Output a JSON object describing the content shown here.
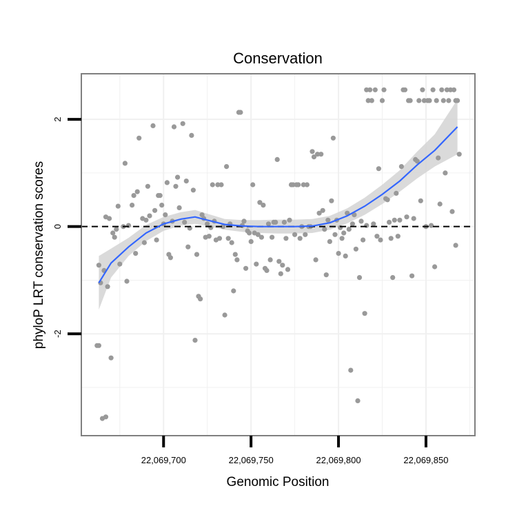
{
  "chart_data": {
    "type": "scatter",
    "title": "Conservation",
    "xlabel": "Genomic Position",
    "ylabel": "phyloP LRT conservation scores",
    "xlim": [
      22069653,
      22069878
    ],
    "ylim": [
      -3.9,
      2.85
    ],
    "x_ticks": [
      22069700,
      22069750,
      22069800,
      22069850
    ],
    "x_tick_labels": [
      "22,069,700",
      "22,069,750",
      "22,069,800",
      "22,069,850"
    ],
    "y_ticks": [
      -2,
      0,
      2
    ],
    "y_tick_labels": [
      "-2",
      "0",
      "2"
    ],
    "reference_line": {
      "y": 0,
      "style": "dashed"
    },
    "grid": true,
    "colors": {
      "points": "#999999",
      "smooth_line": "#3366ff",
      "ribbon": "#d3d3d3",
      "panel_border": "#7f7f7f",
      "grid": "#f0f0f0"
    },
    "points": [
      [
        22069662,
        -2.22
      ],
      [
        22069663,
        -2.22
      ],
      [
        22069663,
        -0.72
      ],
      [
        22069664,
        -1.05
      ],
      [
        22069665,
        -3.58
      ],
      [
        22069666,
        -0.82
      ],
      [
        22069667,
        0.18
      ],
      [
        22069667,
        -3.55
      ],
      [
        22069668,
        -1.12
      ],
      [
        22069669,
        0.15
      ],
      [
        22069670,
        -2.45
      ],
      [
        22069671,
        -0.12
      ],
      [
        22069672,
        -0.2
      ],
      [
        22069673,
        -0.05
      ],
      [
        22069674,
        0.38
      ],
      [
        22069675,
        -0.7
      ],
      [
        22069677,
        0.0
      ],
      [
        22069678,
        1.18
      ],
      [
        22069679,
        -1.02
      ],
      [
        22069680,
        0.02
      ],
      [
        22069682,
        0.4
      ],
      [
        22069683,
        0.58
      ],
      [
        22069684,
        -0.5
      ],
      [
        22069685,
        0.65
      ],
      [
        22069686,
        1.65
      ],
      [
        22069688,
        0.15
      ],
      [
        22069689,
        -0.3
      ],
      [
        22069690,
        0.12
      ],
      [
        22069691,
        0.75
      ],
      [
        22069692,
        0.2
      ],
      [
        22069694,
        1.88
      ],
      [
        22069695,
        0.3
      ],
      [
        22069696,
        -0.25
      ],
      [
        22069697,
        0.58
      ],
      [
        22069698,
        0.58
      ],
      [
        22069699,
        0.4
      ],
      [
        22069700,
        0.05
      ],
      [
        22069701,
        0.22
      ],
      [
        22069702,
        0.82
      ],
      [
        22069703,
        -0.52
      ],
      [
        22069704,
        -0.58
      ],
      [
        22069705,
        0.1
      ],
      [
        22069706,
        1.86
      ],
      [
        22069707,
        0.75
      ],
      [
        22069708,
        0.92
      ],
      [
        22069709,
        0.35
      ],
      [
        22069711,
        1.92
      ],
      [
        22069712,
        0.08
      ],
      [
        22069713,
        0.85
      ],
      [
        22069714,
        -0.38
      ],
      [
        22069715,
        -0.03
      ],
      [
        22069716,
        1.7
      ],
      [
        22069717,
        0.68
      ],
      [
        22069718,
        -2.12
      ],
      [
        22069719,
        -0.52
      ],
      [
        22069720,
        -1.3
      ],
      [
        22069721,
        -1.35
      ],
      [
        22069722,
        0.22
      ],
      [
        22069723,
        0.15
      ],
      [
        22069724,
        -0.2
      ],
      [
        22069725,
        0.05
      ],
      [
        22069726,
        -0.18
      ],
      [
        22069727,
        -0.02
      ],
      [
        22069728,
        0.78
      ],
      [
        22069729,
        0.1
      ],
      [
        22069730,
        -0.25
      ],
      [
        22069731,
        0.78
      ],
      [
        22069732,
        -0.22
      ],
      [
        22069733,
        0.78
      ],
      [
        22069734,
        0.0
      ],
      [
        22069735,
        -1.65
      ],
      [
        22069736,
        1.12
      ],
      [
        22069737,
        -0.22
      ],
      [
        22069738,
        0.05
      ],
      [
        22069739,
        -0.3
      ],
      [
        22069740,
        -1.2
      ],
      [
        22069741,
        -0.52
      ],
      [
        22069742,
        -0.62
      ],
      [
        22069743,
        2.13
      ],
      [
        22069744,
        2.13
      ],
      [
        22069745,
        0.02
      ],
      [
        22069746,
        0.1
      ],
      [
        22069747,
        -0.78
      ],
      [
        22069748,
        -0.08
      ],
      [
        22069749,
        -0.12
      ],
      [
        22069750,
        -0.28
      ],
      [
        22069751,
        0.78
      ],
      [
        22069752,
        -0.12
      ],
      [
        22069753,
        -0.7
      ],
      [
        22069754,
        -0.15
      ],
      [
        22069755,
        0.45
      ],
      [
        22069756,
        -0.2
      ],
      [
        22069757,
        0.4
      ],
      [
        22069758,
        -0.78
      ],
      [
        22069759,
        -0.82
      ],
      [
        22069760,
        0.05
      ],
      [
        22069761,
        -0.62
      ],
      [
        22069762,
        -0.2
      ],
      [
        22069763,
        0.08
      ],
      [
        22069764,
        0.08
      ],
      [
        22069765,
        1.25
      ],
      [
        22069766,
        -0.65
      ],
      [
        22069767,
        -0.88
      ],
      [
        22069768,
        -0.72
      ],
      [
        22069769,
        0.08
      ],
      [
        22069770,
        -0.22
      ],
      [
        22069771,
        -0.8
      ],
      [
        22069772,
        0.12
      ],
      [
        22069773,
        0.78
      ],
      [
        22069774,
        0.78
      ],
      [
        22069775,
        -0.15
      ],
      [
        22069776,
        0.78
      ],
      [
        22069777,
        0.78
      ],
      [
        22069778,
        -0.22
      ],
      [
        22069779,
        0.0
      ],
      [
        22069780,
        0.78
      ],
      [
        22069781,
        -0.15
      ],
      [
        22069782,
        0.78
      ],
      [
        22069783,
        0.0
      ],
      [
        22069784,
        0.0
      ],
      [
        22069785,
        1.4
      ],
      [
        22069786,
        1.3
      ],
      [
        22069787,
        -0.62
      ],
      [
        22069788,
        1.35
      ],
      [
        22069789,
        0.25
      ],
      [
        22069790,
        1.35
      ],
      [
        22069791,
        0.3
      ],
      [
        22069792,
        -0.05
      ],
      [
        22069793,
        -0.9
      ],
      [
        22069794,
        0.12
      ],
      [
        22069795,
        -0.28
      ],
      [
        22069796,
        0.48
      ],
      [
        22069797,
        1.65
      ],
      [
        22069798,
        -0.15
      ],
      [
        22069799,
        0.12
      ],
      [
        22069800,
        -0.5
      ],
      [
        22069801,
        -0.02
      ],
      [
        22069802,
        -0.22
      ],
      [
        22069803,
        -0.12
      ],
      [
        22069804,
        -0.55
      ],
      [
        22069805,
        0.25
      ],
      [
        22069806,
        -0.05
      ],
      [
        22069807,
        -2.68
      ],
      [
        22069808,
        0.05
      ],
      [
        22069809,
        0.22
      ],
      [
        22069810,
        -0.42
      ],
      [
        22069811,
        -3.25
      ],
      [
        22069812,
        -0.95
      ],
      [
        22069813,
        0.1
      ],
      [
        22069814,
        -0.25
      ],
      [
        22069815,
        -1.62
      ],
      [
        22069816,
        0.02
      ],
      [
        22069816,
        2.55
      ],
      [
        22069817,
        2.35
      ],
      [
        22069818,
        2.55
      ],
      [
        22069819,
        2.35
      ],
      [
        22069820,
        0.05
      ],
      [
        22069821,
        2.55
      ],
      [
        22069822,
        -0.18
      ],
      [
        22069823,
        1.08
      ],
      [
        22069824,
        -0.25
      ],
      [
        22069825,
        2.35
      ],
      [
        22069826,
        2.55
      ],
      [
        22069827,
        0.52
      ],
      [
        22069828,
        0.5
      ],
      [
        22069829,
        0.08
      ],
      [
        22069830,
        -0.22
      ],
      [
        22069831,
        -0.95
      ],
      [
        22069832,
        0.12
      ],
      [
        22069833,
        0.62
      ],
      [
        22069834,
        -0.18
      ],
      [
        22069835,
        0.12
      ],
      [
        22069836,
        1.12
      ],
      [
        22069837,
        2.55
      ],
      [
        22069838,
        2.55
      ],
      [
        22069839,
        0.18
      ],
      [
        22069840,
        2.35
      ],
      [
        22069841,
        2.35
      ],
      [
        22069842,
        -0.92
      ],
      [
        22069843,
        0.15
      ],
      [
        22069844,
        1.25
      ],
      [
        22069845,
        1.22
      ],
      [
        22069846,
        2.35
      ],
      [
        22069847,
        0.48
      ],
      [
        22069848,
        2.55
      ],
      [
        22069849,
        2.35
      ],
      [
        22069850,
        0.0
      ],
      [
        22069851,
        2.35
      ],
      [
        22069852,
        2.35
      ],
      [
        22069853,
        0.02
      ],
      [
        22069854,
        2.55
      ],
      [
        22069855,
        -0.75
      ],
      [
        22069856,
        2.35
      ],
      [
        22069857,
        1.28
      ],
      [
        22069858,
        0.42
      ],
      [
        22069859,
        2.55
      ],
      [
        22069860,
        2.35
      ],
      [
        22069861,
        1.0
      ],
      [
        22069862,
        2.55
      ],
      [
        22069863,
        2.35
      ],
      [
        22069864,
        2.55
      ],
      [
        22069865,
        0.28
      ],
      [
        22069866,
        2.55
      ],
      [
        22069867,
        2.35
      ],
      [
        22069867,
        -0.35
      ],
      [
        22069868,
        2.35
      ],
      [
        22069869,
        1.35
      ]
    ],
    "smooth": {
      "x": [
        22069663,
        22069670,
        22069680,
        22069690,
        22069700,
        22069710,
        22069718,
        22069725,
        22069735,
        22069745,
        22069755,
        22069765,
        22069775,
        22069785,
        22069795,
        22069805,
        22069815,
        22069825,
        22069835,
        22069845,
        22069855,
        22069868
      ],
      "y": [
        -1.05,
        -0.68,
        -0.38,
        -0.12,
        0.05,
        0.14,
        0.18,
        0.12,
        0.04,
        0.01,
        0.0,
        0.0,
        0.0,
        0.01,
        0.07,
        0.2,
        0.38,
        0.6,
        0.85,
        1.15,
        1.42,
        1.86
      ],
      "lower": [
        -1.55,
        -0.95,
        -0.55,
        -0.27,
        -0.08,
        0.02,
        0.05,
        0.01,
        -0.06,
        -0.1,
        -0.12,
        -0.13,
        -0.13,
        -0.12,
        -0.06,
        0.06,
        0.22,
        0.42,
        0.65,
        0.9,
        1.12,
        1.35
      ],
      "upper": [
        -0.55,
        -0.41,
        -0.21,
        0.03,
        0.18,
        0.27,
        0.31,
        0.24,
        0.14,
        0.12,
        0.12,
        0.13,
        0.13,
        0.14,
        0.2,
        0.34,
        0.54,
        0.78,
        1.05,
        1.4,
        1.72,
        2.37
      ]
    }
  }
}
